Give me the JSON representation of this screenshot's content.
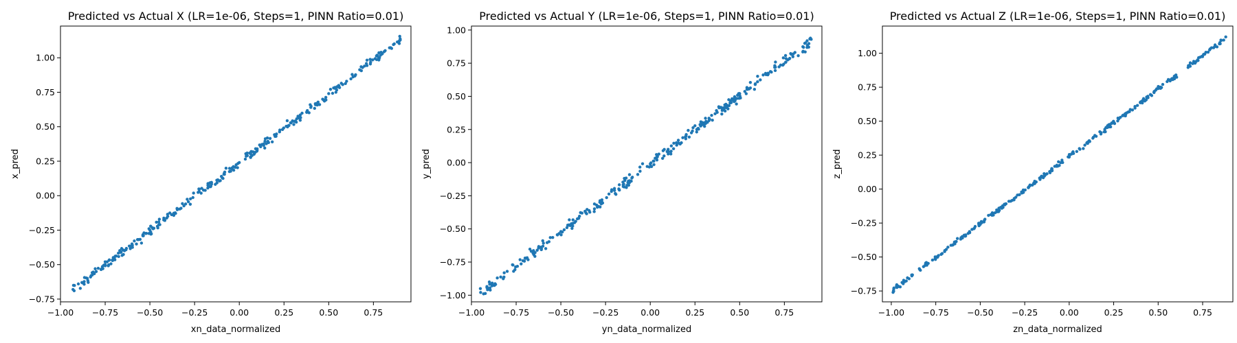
{
  "colors": {
    "marker": "#1f77b4",
    "axis": "#000000",
    "background": "#ffffff"
  },
  "chart_data": [
    {
      "type": "scatter",
      "title": "Predicted vs Actual X (LR=1e-06, Steps=1, PINN Ratio=0.01)",
      "xlabel": "xn_data_normalized",
      "ylabel": "x_pred",
      "xlim": [
        -1.0,
        0.96
      ],
      "ylim": [
        -0.77,
        1.23
      ],
      "xticks": [
        -1.0,
        -0.75,
        -0.5,
        -0.25,
        0.0,
        0.25,
        0.5,
        0.75
      ],
      "xtick_labels": [
        "−1.00",
        "−0.75",
        "−0.50",
        "−0.25",
        "0.00",
        "0.25",
        "0.50",
        "0.75"
      ],
      "yticks": [
        -0.75,
        -0.5,
        -0.25,
        0.0,
        0.25,
        0.5,
        0.75,
        1.0
      ],
      "ytick_labels": [
        "−0.75",
        "−0.50",
        "−0.25",
        "0.00",
        "0.25",
        "0.50",
        "0.75",
        "1.00"
      ],
      "grid": false,
      "legend": "none",
      "trend": {
        "slope": 0.99,
        "intercept": 0.24,
        "x_range": [
          -0.93,
          0.9
        ],
        "spread": 0.028,
        "n_points": 300
      },
      "x": [
        -0.93,
        -0.9,
        -0.88,
        -0.85,
        -0.8,
        -0.75,
        -0.7,
        -0.6,
        -0.5,
        -0.4,
        -0.3,
        -0.2,
        -0.1,
        0.0,
        0.1,
        0.2,
        0.3,
        0.4,
        0.5,
        0.6,
        0.7,
        0.8,
        0.9
      ],
      "y": [
        -0.68,
        -0.64,
        -0.63,
        -0.6,
        -0.55,
        -0.5,
        -0.45,
        -0.35,
        -0.25,
        -0.15,
        -0.06,
        0.04,
        0.14,
        0.24,
        0.34,
        0.43,
        0.54,
        0.64,
        0.74,
        0.83,
        0.94,
        1.03,
        1.13
      ]
    },
    {
      "type": "scatter",
      "title": "Predicted vs Actual Y (LR=1e-06, Steps=1, PINN Ratio=0.01)",
      "xlabel": "yn_data_normalized",
      "ylabel": "y_pred",
      "xlim": [
        -1.0,
        0.96
      ],
      "ylim": [
        -1.05,
        1.03
      ],
      "xticks": [
        -1.0,
        -0.75,
        -0.5,
        -0.25,
        0.0,
        0.25,
        0.5,
        0.75
      ],
      "xtick_labels": [
        "−1.00",
        "−0.75",
        "−0.50",
        "−0.25",
        "0.00",
        "0.25",
        "0.50",
        "0.75"
      ],
      "yticks": [
        -1.0,
        -0.75,
        -0.5,
        -0.25,
        0.0,
        0.25,
        0.5,
        0.75,
        1.0
      ],
      "ytick_labels": [
        "−1.00",
        "−0.75",
        "−0.50",
        "−0.25",
        "0.00",
        "0.25",
        "0.50",
        "0.75",
        "1.00"
      ],
      "grid": false,
      "legend": "none",
      "trend": {
        "slope": 1.03,
        "intercept": -0.01,
        "x_range": [
          -0.95,
          0.9
        ],
        "spread": 0.032,
        "n_points": 300
      },
      "x": [
        -0.95,
        -0.9,
        -0.8,
        -0.7,
        -0.6,
        -0.5,
        -0.4,
        -0.3,
        -0.2,
        -0.1,
        0.0,
        0.1,
        0.2,
        0.3,
        0.4,
        0.5,
        0.6,
        0.7,
        0.8,
        0.9
      ],
      "y": [
        -0.95,
        -0.9,
        -0.82,
        -0.72,
        -0.63,
        -0.52,
        -0.42,
        -0.32,
        -0.21,
        -0.11,
        -0.01,
        0.1,
        0.2,
        0.3,
        0.41,
        0.52,
        0.61,
        0.72,
        0.82,
        0.93
      ]
    },
    {
      "type": "scatter",
      "title": "Predicted vs Actual Z (LR=1e-06, Steps=1, PINN Ratio=0.01)",
      "xlabel": "zn_data_normalized",
      "ylabel": "z_pred",
      "xlim": [
        -1.05,
        0.92
      ],
      "ylim": [
        -0.83,
        1.2
      ],
      "xticks": [
        -1.0,
        -0.75,
        -0.5,
        -0.25,
        0.0,
        0.25,
        0.5,
        0.75
      ],
      "xtick_labels": [
        "−1.00",
        "−0.75",
        "−0.50",
        "−0.25",
        "0.00",
        "0.25",
        "0.50",
        "0.75"
      ],
      "yticks": [
        -0.75,
        -0.5,
        -0.25,
        0.0,
        0.25,
        0.5,
        0.75,
        1.0
      ],
      "ytick_labels": [
        "−0.75",
        "−0.50",
        "−0.25",
        "0.00",
        "0.25",
        "0.50",
        "0.75",
        "1.00"
      ],
      "grid": false,
      "legend": "none",
      "trend": {
        "slope": 0.99,
        "intercept": 0.24,
        "x_range": [
          -0.99,
          0.88
        ],
        "spread": 0.014,
        "n_points": 300
      },
      "x": [
        -0.99,
        -0.95,
        -0.9,
        -0.8,
        -0.7,
        -0.6,
        -0.5,
        -0.4,
        -0.3,
        -0.2,
        -0.1,
        0.0,
        0.1,
        0.2,
        0.3,
        0.4,
        0.5,
        0.6,
        0.7,
        0.8,
        0.88
      ],
      "y": [
        -0.76,
        -0.72,
        -0.66,
        -0.56,
        -0.46,
        -0.36,
        -0.26,
        -0.16,
        -0.06,
        0.04,
        0.14,
        0.24,
        0.34,
        0.44,
        0.54,
        0.64,
        0.74,
        0.84,
        0.94,
        1.04,
        1.12
      ]
    }
  ]
}
